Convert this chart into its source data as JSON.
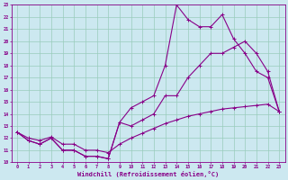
{
  "xlabel": "Windchill (Refroidissement éolien,°C)",
  "bg_color": "#cce8f0",
  "line_color": "#880088",
  "grid_color": "#99ccbb",
  "xlim": [
    -0.5,
    23.5
  ],
  "ylim": [
    10,
    23
  ],
  "xticks": [
    0,
    1,
    2,
    3,
    4,
    5,
    6,
    7,
    8,
    9,
    10,
    11,
    12,
    13,
    14,
    15,
    16,
    17,
    18,
    19,
    20,
    21,
    22,
    23
  ],
  "yticks": [
    10,
    11,
    12,
    13,
    14,
    15,
    16,
    17,
    18,
    19,
    20,
    21,
    22,
    23
  ],
  "line1_x": [
    0,
    1,
    2,
    3,
    4,
    5,
    6,
    7,
    8,
    9,
    10,
    11,
    12,
    13,
    14,
    15,
    16,
    17,
    18,
    19,
    20,
    21,
    22,
    23
  ],
  "line1_y": [
    12.5,
    11.8,
    11.5,
    12.0,
    11.0,
    11.0,
    10.5,
    10.5,
    10.3,
    13.3,
    14.5,
    15.0,
    15.5,
    18.0,
    23.0,
    21.8,
    21.2,
    21.2,
    22.2,
    20.2,
    19.0,
    17.5,
    17.0,
    14.2
  ],
  "line2_x": [
    0,
    1,
    2,
    3,
    4,
    5,
    6,
    7,
    8,
    9,
    10,
    11,
    12,
    13,
    14,
    15,
    16,
    17,
    18,
    19,
    20,
    21,
    22,
    23
  ],
  "line2_y": [
    12.5,
    11.8,
    11.5,
    12.0,
    11.0,
    11.0,
    10.5,
    10.5,
    10.3,
    13.3,
    13.0,
    13.5,
    14.0,
    15.5,
    15.5,
    17.0,
    18.0,
    19.0,
    19.0,
    19.5,
    20.0,
    19.0,
    17.5,
    14.2
  ],
  "line3_x": [
    0,
    1,
    2,
    3,
    4,
    5,
    6,
    7,
    8,
    9,
    10,
    11,
    12,
    13,
    14,
    15,
    16,
    17,
    18,
    19,
    20,
    21,
    22,
    23
  ],
  "line3_y": [
    12.5,
    12.0,
    11.8,
    12.1,
    11.5,
    11.5,
    11.0,
    11.0,
    10.8,
    11.5,
    12.0,
    12.4,
    12.8,
    13.2,
    13.5,
    13.8,
    14.0,
    14.2,
    14.4,
    14.5,
    14.6,
    14.7,
    14.8,
    14.2
  ]
}
